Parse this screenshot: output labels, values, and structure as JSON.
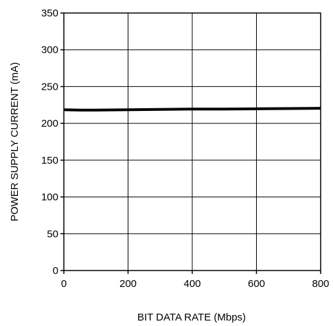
{
  "chart_data": {
    "type": "line",
    "title": "",
    "xlabel": "BIT DATA RATE (Mbps)",
    "ylabel": "POWER SUPPLY CURRENT (mA)",
    "xlim": [
      0,
      800
    ],
    "ylim": [
      0,
      350
    ],
    "xticks": [
      0,
      200,
      400,
      600,
      800
    ],
    "yticks": [
      0,
      50,
      100,
      150,
      200,
      250,
      300,
      350
    ],
    "grid": true,
    "legend": "none",
    "series": [
      {
        "color": "#000000",
        "x": [
          0,
          50,
          100,
          200,
          300,
          400,
          500,
          600,
          700,
          800
        ],
        "y": [
          218.5,
          218.0,
          218.0,
          218.5,
          219.0,
          219.5,
          219.5,
          219.8,
          220.2,
          220.5
        ]
      }
    ]
  }
}
